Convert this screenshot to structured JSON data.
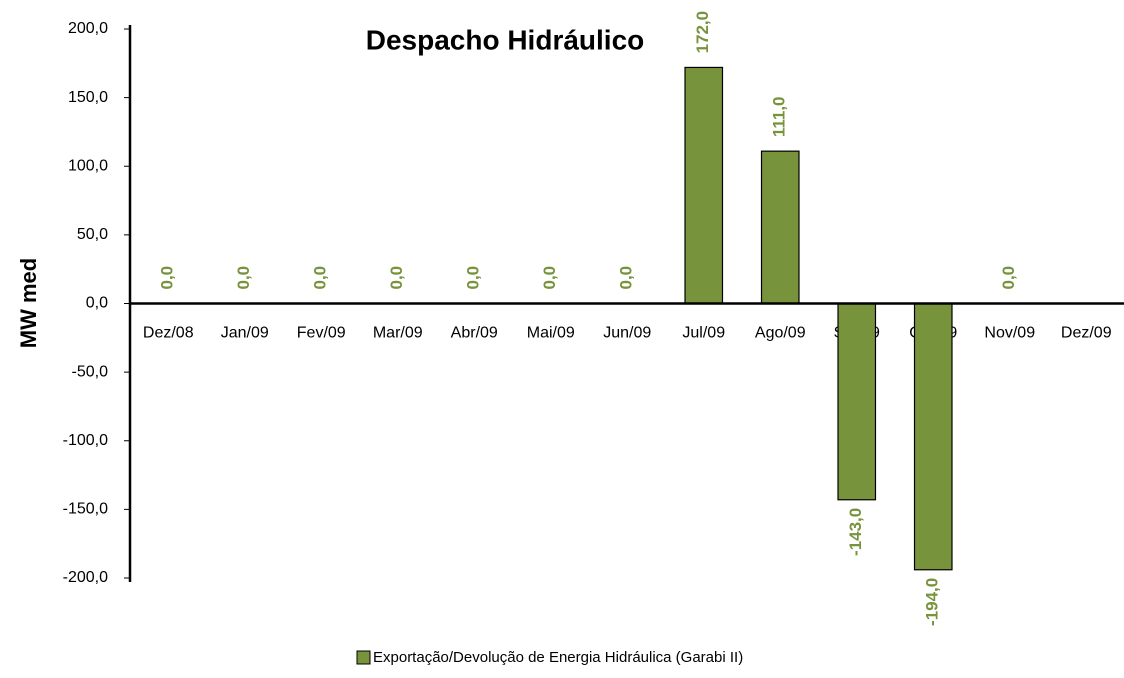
{
  "chart_data": {
    "type": "bar",
    "title": "Despacho Hidráulico",
    "y_label": "MW med",
    "categories": [
      "Dez/08",
      "Jan/09",
      "Fev/09",
      "Mar/09",
      "Abr/09",
      "Mai/09",
      "Jun/09",
      "Jul/09",
      "Ago/09",
      "Set/09",
      "Out/09",
      "Nov/09",
      "Dez/09"
    ],
    "series": [
      {
        "name": "Exportação/Devolução de Energia Hidráulica (Garabi II)",
        "color": "#77933c",
        "values": [
          0,
          0,
          0,
          0,
          0,
          0,
          0,
          172,
          111,
          -143,
          -194,
          0,
          null
        ],
        "value_labels": [
          "0,0",
          "0,0",
          "0,0",
          "0,0",
          "0,0",
          "0,0",
          "0,0",
          "172,0",
          "111,0",
          "-143,0",
          "-194,0",
          "0,0",
          null
        ]
      }
    ],
    "label_color": "#77933c",
    "ylim": [
      -200,
      200
    ],
    "yticks": [
      {
        "value": -200,
        "label": "-200,0"
      },
      {
        "value": -150,
        "label": "-150,0"
      },
      {
        "value": -100,
        "label": "-100,0"
      },
      {
        "value": -50,
        "label": "-50,0"
      },
      {
        "value": 0,
        "label": "0,0"
      },
      {
        "value": 50,
        "label": "50,0"
      },
      {
        "value": 100,
        "label": "100,0"
      },
      {
        "value": 150,
        "label": "150,0"
      },
      {
        "value": 200,
        "label": "200,0"
      }
    ],
    "grid": false,
    "legend_position": "bottom"
  }
}
